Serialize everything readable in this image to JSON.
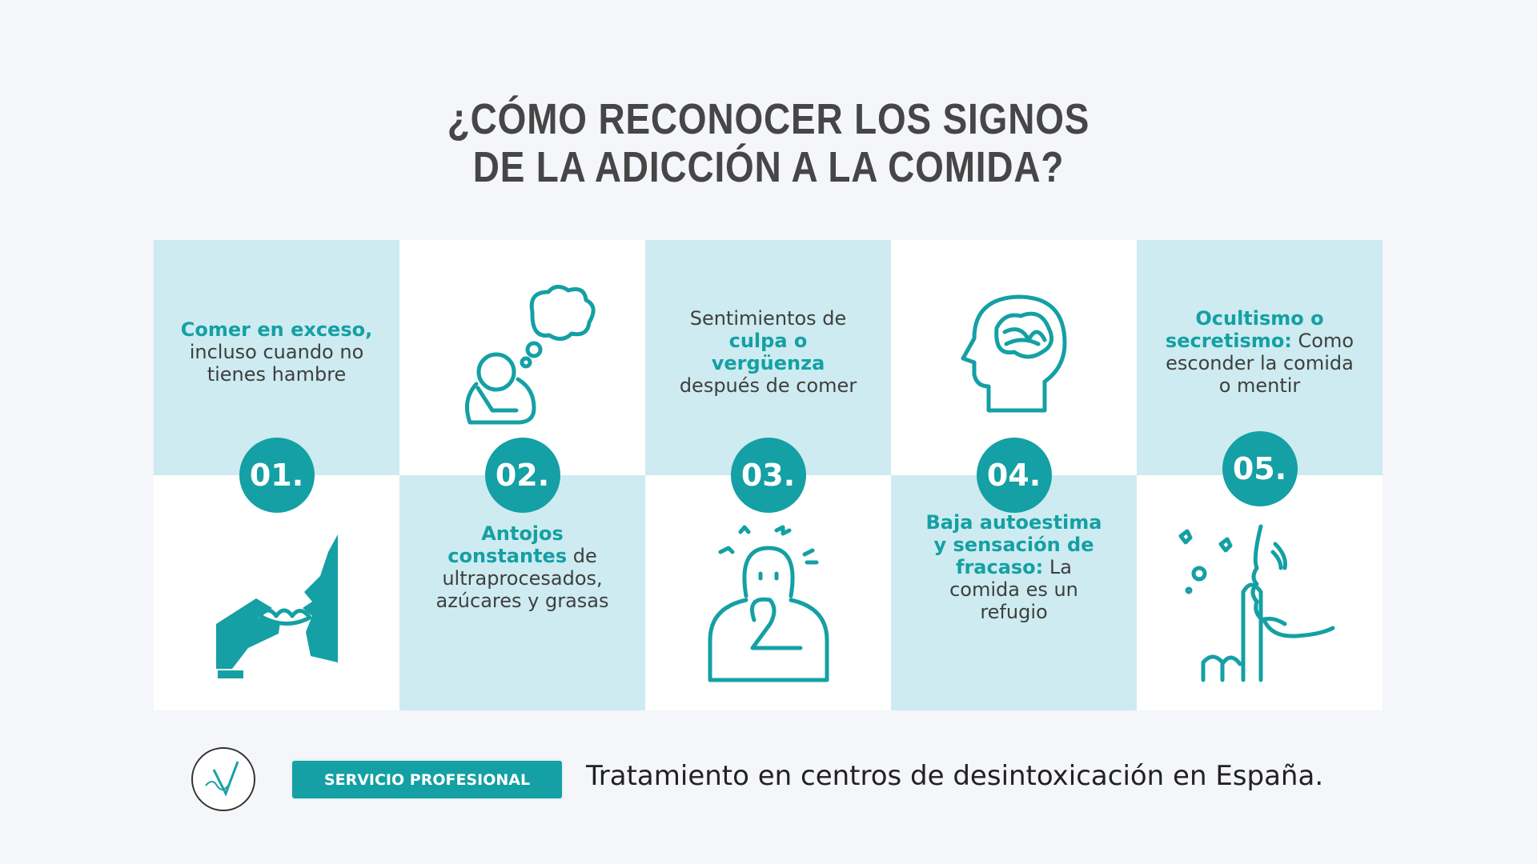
{
  "title": {
    "lines": [
      "¿CÓMO RECONOCER LOS SIGNOS",
      "DE LA ADICCIÓN A LA COMIDA?"
    ]
  },
  "items": [
    {
      "number": "01.",
      "parts": [
        {
          "text": "Comer en exceso,",
          "strong": true
        },
        {
          "text": "incluso cuando no tienes hambre"
        }
      ]
    },
    {
      "number": "02.",
      "parts": [
        {
          "text": "Antojos constantes",
          "strong": true
        },
        {
          "text": "de ultraprocesados, azúcares y grasas"
        }
      ]
    },
    {
      "number": "03.",
      "parts": [
        {
          "text": "Sentimientos de"
        },
        {
          "text": "culpa o vergüenza",
          "strong": true
        },
        {
          "text": "después de comer"
        }
      ]
    },
    {
      "number": "04.",
      "parts": [
        {
          "text": "Baja autoestima y sensación de fracaso:",
          "strong": true
        },
        {
          "text": "La comida es un refugio"
        }
      ]
    },
    {
      "number": "05.",
      "parts": [
        {
          "text": "Ocultismo o secretismo:",
          "strong": true
        },
        {
          "text": "Como esconder la comida o mentir"
        }
      ]
    }
  ],
  "footer": {
    "badge": "SERVICIO PROFESIONAL",
    "text": "Tratamiento en centros de desintoxicación en España."
  }
}
